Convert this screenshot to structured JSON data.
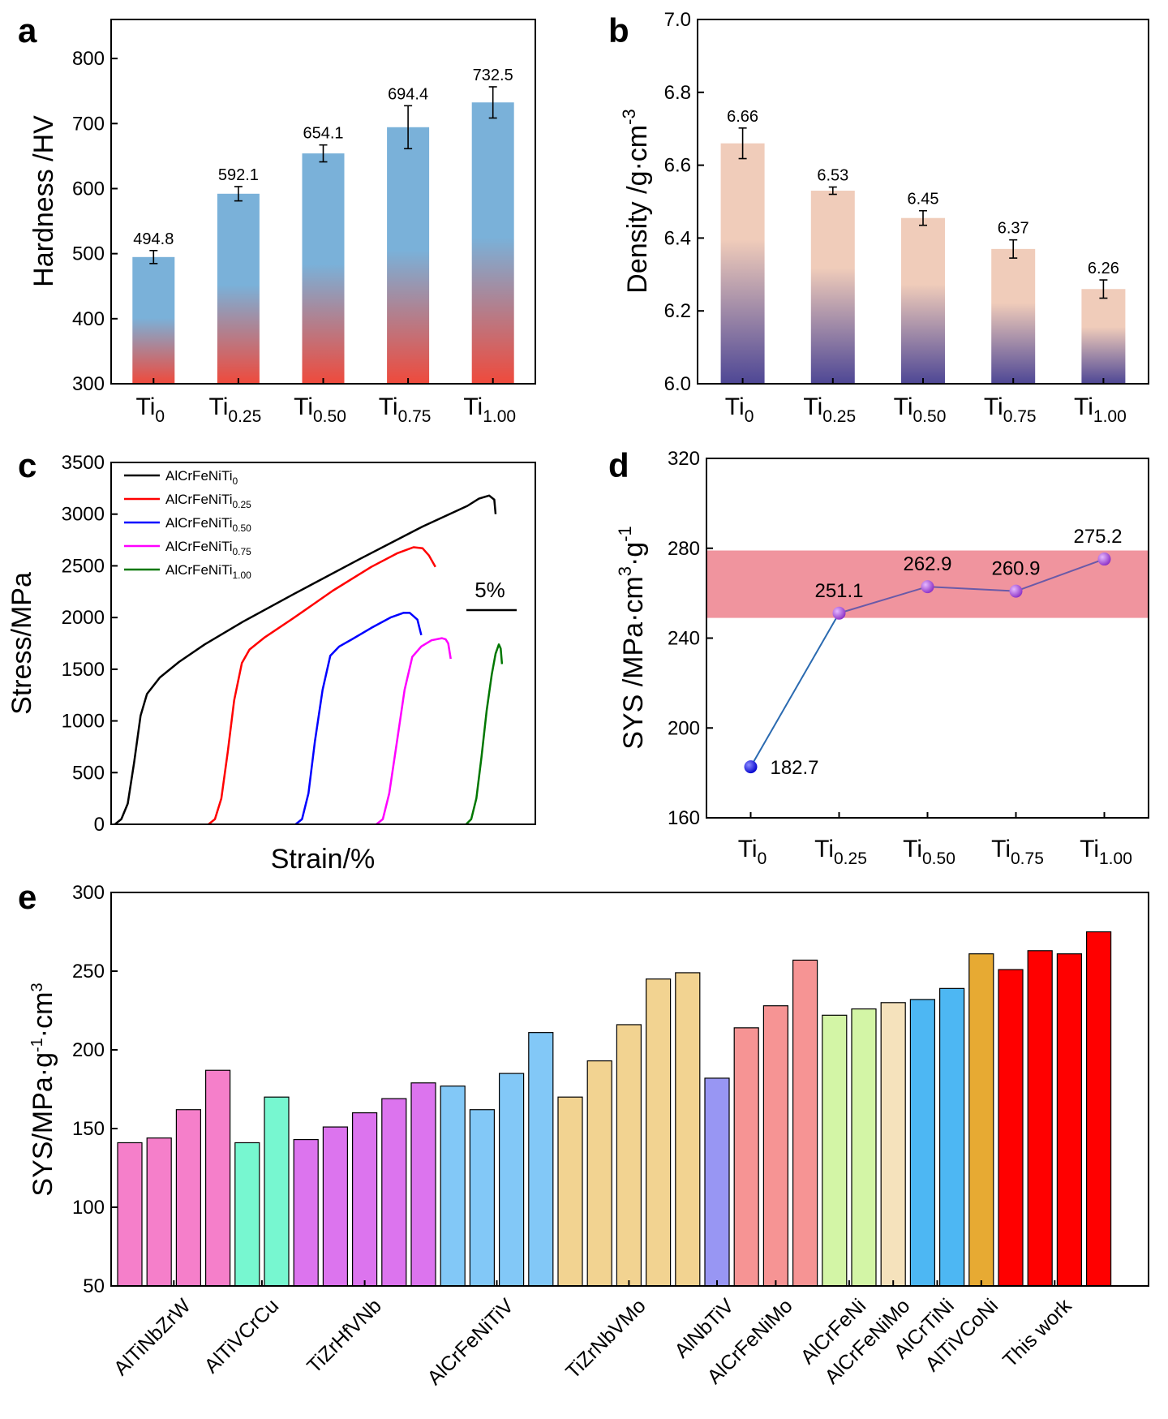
{
  "colors": {
    "hardness_top": "#7ab1d9",
    "hardness_bottom": "#ef4a3c",
    "density_top": "#f0ccba",
    "density_bottom": "#4e4795",
    "band": "#f0949e",
    "line_d": "#2a6ab0",
    "point_d": "#a04ad0",
    "point_d_first": "#1515d8"
  },
  "chart_data": [
    {
      "panel": "a",
      "type": "bar",
      "ylabel": "Hardness /HV",
      "ylim": [
        300,
        860
      ],
      "yticks": [
        "300",
        "400",
        "500",
        "600",
        "700",
        "800"
      ],
      "categories": [
        {
          "base": "Ti",
          "sub": "0"
        },
        {
          "base": "Ti",
          "sub": "0.25"
        },
        {
          "base": "Ti",
          "sub": "0.50"
        },
        {
          "base": "Ti",
          "sub": "0.75"
        },
        {
          "base": "Ti",
          "sub": "1.00"
        }
      ],
      "values": [
        494.8,
        592.1,
        654.1,
        694.4,
        732.5
      ],
      "errors": [
        10,
        11,
        13,
        33,
        24
      ],
      "labels": [
        "494.8",
        "592.1",
        "654.1",
        "694.4",
        "732.5"
      ]
    },
    {
      "panel": "b",
      "type": "bar",
      "ylabel_base": "Density /g·cm",
      "ylabel_sup": "-3",
      "ylim": [
        6.0,
        7.0
      ],
      "yticks": [
        "6.0",
        "6.2",
        "6.4",
        "6.6",
        "6.8",
        "7.0"
      ],
      "categories": [
        {
          "base": "Ti",
          "sub": "0"
        },
        {
          "base": "Ti",
          "sub": "0.25"
        },
        {
          "base": "Ti",
          "sub": "0.50"
        },
        {
          "base": "Ti",
          "sub": "0.75"
        },
        {
          "base": "Ti",
          "sub": "1.00"
        }
      ],
      "values": [
        6.66,
        6.53,
        6.455,
        6.37,
        6.26
      ],
      "errors": [
        0.042,
        0.01,
        0.02,
        0.025,
        0.025
      ],
      "labels": [
        "6.66",
        "6.53",
        "6.45",
        "6.37",
        "6.26"
      ]
    },
    {
      "panel": "c",
      "type": "line",
      "xlabel": "Strain/%",
      "ylabel": "Stress/MPa",
      "ylim": [
        0,
        3500
      ],
      "yticks": [
        "0",
        "500",
        "1000",
        "1500",
        "2000",
        "2500",
        "3000",
        "3500"
      ],
      "scale_bar": "5%",
      "series": [
        {
          "name": "AlCrFeNiTi",
          "sub": "0",
          "color": "#000000",
          "points": [
            [
              0,
              0
            ],
            [
              0.5,
              50
            ],
            [
              1,
              200
            ],
            [
              1.5,
              600
            ],
            [
              2,
              1050
            ],
            [
              2.5,
              1260
            ],
            [
              3.5,
              1420
            ],
            [
              5,
              1570
            ],
            [
              7,
              1740
            ],
            [
              10,
              1960
            ],
            [
              14,
              2230
            ],
            [
              19,
              2560
            ],
            [
              24,
              2880
            ],
            [
              27.5,
              3080
            ],
            [
              28.4,
              3150
            ],
            [
              29.2,
              3180
            ],
            [
              29.6,
              3140
            ],
            [
              29.7,
              3000
            ]
          ]
        },
        {
          "name": "AlCrFeNiTi",
          "sub": "0.25",
          "color": "#ff0000",
          "points": [
            [
              7.3,
              0
            ],
            [
              7.8,
              50
            ],
            [
              8.3,
              250
            ],
            [
              8.8,
              700
            ],
            [
              9.3,
              1200
            ],
            [
              9.9,
              1560
            ],
            [
              10.5,
              1690
            ],
            [
              11.7,
              1810
            ],
            [
              14,
              2000
            ],
            [
              17,
              2260
            ],
            [
              20,
              2490
            ],
            [
              22,
              2620
            ],
            [
              23.3,
              2680
            ],
            [
              24,
              2670
            ],
            [
              24.5,
              2600
            ],
            [
              25,
              2490
            ]
          ]
        },
        {
          "name": "AlCrFeNiTi",
          "sub": "0.50",
          "color": "#0000ff",
          "points": [
            [
              14.1,
              0
            ],
            [
              14.6,
              50
            ],
            [
              15.1,
              300
            ],
            [
              15.6,
              800
            ],
            [
              16.2,
              1300
            ],
            [
              16.8,
              1630
            ],
            [
              17.5,
              1720
            ],
            [
              18.5,
              1790
            ],
            [
              20,
              1900
            ],
            [
              21.5,
              2000
            ],
            [
              22.5,
              2045
            ],
            [
              23,
              2045
            ],
            [
              23.6,
              1980
            ],
            [
              23.9,
              1830
            ]
          ]
        },
        {
          "name": "AlCrFeNiTi",
          "sub": "0.75",
          "color": "#ff00ff",
          "points": [
            [
              20.4,
              0
            ],
            [
              20.9,
              50
            ],
            [
              21.4,
              300
            ],
            [
              22,
              800
            ],
            [
              22.6,
              1300
            ],
            [
              23.2,
              1620
            ],
            [
              23.9,
              1720
            ],
            [
              24.7,
              1780
            ],
            [
              25.5,
              1800
            ],
            [
              25.8,
              1790
            ],
            [
              26,
              1750
            ],
            [
              26.2,
              1600
            ]
          ]
        },
        {
          "name": "AlCrFeNiTi",
          "sub": "1.00",
          "color": "#007700",
          "points": [
            [
              27.4,
              0
            ],
            [
              27.8,
              50
            ],
            [
              28.2,
              250
            ],
            [
              28.6,
              650
            ],
            [
              29,
              1100
            ],
            [
              29.4,
              1450
            ],
            [
              29.7,
              1650
            ],
            [
              29.95,
              1740
            ],
            [
              30.1,
              1700
            ],
            [
              30.2,
              1550
            ]
          ]
        }
      ]
    },
    {
      "panel": "d",
      "type": "line",
      "ylabel_base": "SYS /MPa·cm",
      "ylabel_sup1": "3",
      "ylabel_mid": "·g",
      "ylabel_sup2": "-1",
      "ylim": [
        160,
        320
      ],
      "yticks": [
        "160",
        "200",
        "240",
        "280",
        "320"
      ],
      "band": [
        249,
        279
      ],
      "categories": [
        {
          "base": "Ti",
          "sub": "0"
        },
        {
          "base": "Ti",
          "sub": "0.25"
        },
        {
          "base": "Ti",
          "sub": "0.50"
        },
        {
          "base": "Ti",
          "sub": "0.75"
        },
        {
          "base": "Ti",
          "sub": "1.00"
        }
      ],
      "values": [
        182.7,
        251.1,
        262.9,
        260.9,
        275.2
      ],
      "labels": [
        "182.7",
        "251.1",
        "262.9",
        "260.9",
        "275.2"
      ]
    },
    {
      "panel": "e",
      "type": "bar",
      "ylabel_base": "SYS/MPa·g",
      "ylabel_sup1": "-1",
      "ylabel_mid": "·cm",
      "ylabel_sup2": "3",
      "ylim": [
        50,
        300
      ],
      "yticks": [
        "50",
        "100",
        "150",
        "200",
        "250",
        "300"
      ],
      "groups": [
        {
          "label": "AlTiNbZrW",
          "color": "#f57fca",
          "values": [
            141,
            144,
            162,
            187
          ]
        },
        {
          "label": "AlTiVCrCu",
          "color": "#77f7d0",
          "values": [
            141,
            170
          ]
        },
        {
          "label": "TiZrHfVNb",
          "color": "#dc74ee",
          "values": [
            143,
            151,
            160,
            169,
            179
          ]
        },
        {
          "label": "AlCrFeNiTiV",
          "color": "#82c8f7",
          "values": [
            177,
            162,
            185,
            211
          ]
        },
        {
          "label": "TiZrNbVMo",
          "color": "#f2d391",
          "values": [
            170,
            193,
            216,
            245,
            249
          ]
        },
        {
          "label": "AlNbTiV",
          "color": "#9896f3",
          "values": [
            182
          ]
        },
        {
          "label": "AlCrFeNiMo",
          "color": "#f69494",
          "values": [
            214,
            228,
            257
          ]
        },
        {
          "label": "AlCrFeNi",
          "color": "#d3f5a6",
          "values": [
            222,
            226
          ]
        },
        {
          "label": "AlCrFeNiMo",
          "color": "#f5e2bc",
          "values": [
            230
          ]
        },
        {
          "label": "AlCrTiNi",
          "color": "#4db7f3",
          "values": [
            232,
            239
          ]
        },
        {
          "label": "AlTiVCoNi",
          "color": "#e7aa33",
          "values": [
            261
          ]
        },
        {
          "label": "This work",
          "color": "#ff0000",
          "values": [
            251,
            263,
            261,
            275
          ]
        }
      ]
    }
  ],
  "panels": {
    "a": "a",
    "b": "b",
    "c": "c",
    "d": "d",
    "e": "e"
  }
}
